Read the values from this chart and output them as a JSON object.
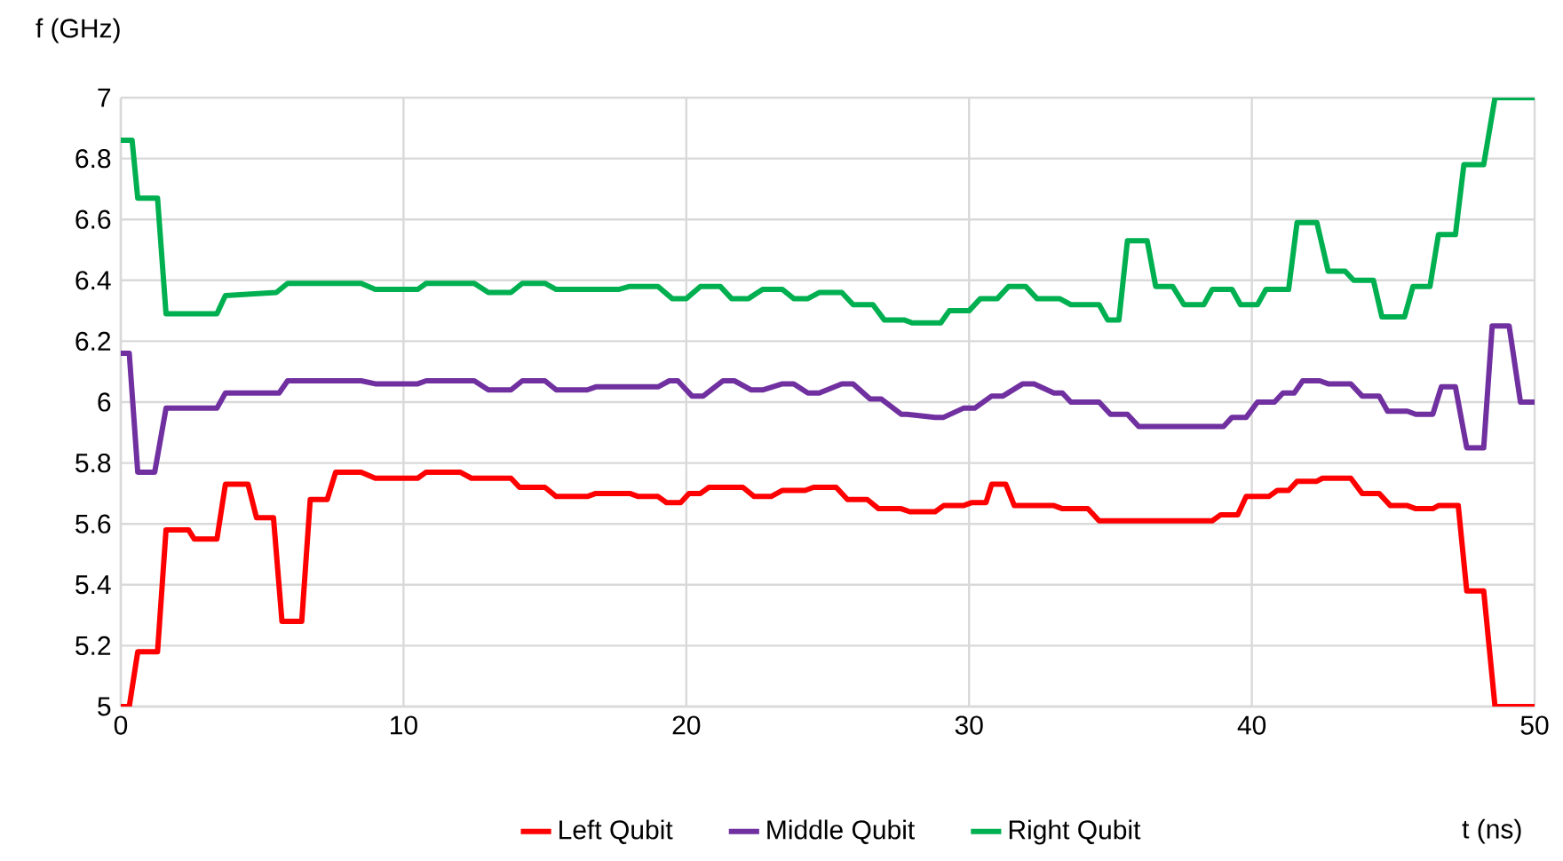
{
  "chart_data": {
    "type": "line",
    "xlabel": "t (ns)",
    "ylabel": "f (GHz)",
    "xlim": [
      0,
      50
    ],
    "xticks": [
      0,
      10,
      20,
      30,
      40,
      50
    ],
    "ylim": [
      5,
      7
    ],
    "yticks": [
      5,
      5.2,
      5.4,
      5.6,
      5.8,
      6,
      6.2,
      6.4,
      6.6,
      6.8,
      7
    ],
    "grid": true,
    "legend": "bottom",
    "series": [
      {
        "name": "Left Qubit",
        "color": "#ff0000",
        "x": [
          0,
          0.3,
          0.6,
          1.3,
          1.6,
          2.4,
          2.6,
          3.4,
          3.7,
          4.5,
          4.8,
          5.4,
          5.7,
          6.4,
          6.7,
          7.3,
          7.6,
          8.5,
          9,
          10.5,
          10.8,
          12,
          12.4,
          13.8,
          14.1,
          15,
          15.4,
          16.5,
          16.8,
          18,
          18.3,
          19,
          19.3,
          19.8,
          20.1,
          20.5,
          20.8,
          22,
          22.4,
          23,
          23.4,
          24.2,
          24.5,
          25.3,
          25.7,
          26.4,
          26.8,
          27.6,
          27.9,
          28.8,
          29.1,
          29.8,
          30.1,
          30.6,
          30.8,
          31.3,
          31.6,
          33,
          33.3,
          34.2,
          34.6,
          38.6,
          38.9,
          39.5,
          39.8,
          40.6,
          40.9,
          41.3,
          41.6,
          42.3,
          42.5,
          43.5,
          43.9,
          44.5,
          44.9,
          45.5,
          45.8,
          46.4,
          46.6,
          47.3,
          47.6,
          48.2,
          48.6,
          50
        ],
        "values": [
          5.0,
          5.0,
          5.18,
          5.18,
          5.58,
          5.58,
          5.55,
          5.55,
          5.73,
          5.73,
          5.62,
          5.62,
          5.28,
          5.28,
          5.68,
          5.68,
          5.77,
          5.77,
          5.75,
          5.75,
          5.77,
          5.77,
          5.75,
          5.75,
          5.72,
          5.72,
          5.69,
          5.69,
          5.7,
          5.7,
          5.69,
          5.69,
          5.67,
          5.67,
          5.7,
          5.7,
          5.72,
          5.72,
          5.69,
          5.69,
          5.71,
          5.71,
          5.72,
          5.72,
          5.68,
          5.68,
          5.65,
          5.65,
          5.64,
          5.64,
          5.66,
          5.66,
          5.67,
          5.67,
          5.73,
          5.73,
          5.66,
          5.66,
          5.65,
          5.65,
          5.61,
          5.61,
          5.63,
          5.63,
          5.69,
          5.69,
          5.71,
          5.71,
          5.74,
          5.74,
          5.75,
          5.75,
          5.7,
          5.7,
          5.66,
          5.66,
          5.65,
          5.65,
          5.66,
          5.66,
          5.38,
          5.38,
          5.0,
          5.0
        ]
      },
      {
        "name": "Middle Qubit",
        "color": "#7030a0",
        "x": [
          0,
          0.3,
          0.6,
          1.2,
          1.6,
          3.4,
          3.7,
          5.6,
          5.9,
          8.5,
          9,
          10.5,
          10.8,
          12.5,
          13,
          13.8,
          14.2,
          15,
          15.4,
          16.5,
          16.8,
          19,
          19.4,
          19.7,
          20.2,
          20.6,
          21.3,
          21.7,
          22.3,
          22.7,
          23.4,
          23.8,
          24.3,
          24.7,
          25.5,
          25.9,
          26.5,
          26.9,
          27.6,
          27.8,
          28.8,
          29.1,
          29.8,
          30.2,
          30.8,
          31.2,
          31.9,
          32.3,
          33,
          33.3,
          33.6,
          34.6,
          35,
          35.6,
          36,
          39,
          39.3,
          39.8,
          40.2,
          40.8,
          41.1,
          41.5,
          41.8,
          42.4,
          42.7,
          43.5,
          43.9,
          44.5,
          44.8,
          45.5,
          45.8,
          46.4,
          46.7,
          47.2,
          47.6,
          48.2,
          48.5,
          49.1,
          49.5,
          50
        ],
        "values": [
          6.16,
          6.16,
          5.77,
          5.77,
          5.98,
          5.98,
          6.03,
          6.03,
          6.07,
          6.07,
          6.06,
          6.06,
          6.07,
          6.07,
          6.04,
          6.04,
          6.07,
          6.07,
          6.04,
          6.04,
          6.05,
          6.05,
          6.07,
          6.07,
          6.02,
          6.02,
          6.07,
          6.07,
          6.04,
          6.04,
          6.06,
          6.06,
          6.03,
          6.03,
          6.06,
          6.06,
          6.01,
          6.01,
          5.96,
          5.96,
          5.95,
          5.95,
          5.98,
          5.98,
          6.02,
          6.02,
          6.06,
          6.06,
          6.03,
          6.03,
          6.0,
          6.0,
          5.96,
          5.96,
          5.92,
          5.92,
          5.95,
          5.95,
          6.0,
          6.0,
          6.03,
          6.03,
          6.07,
          6.07,
          6.06,
          6.06,
          6.02,
          6.02,
          5.97,
          5.97,
          5.96,
          5.96,
          6.05,
          6.05,
          5.85,
          5.85,
          6.25,
          6.25,
          6.0,
          6.0
        ]
      },
      {
        "name": "Right Qubit",
        "color": "#00b050",
        "x": [
          0,
          0.4,
          0.6,
          1.3,
          1.6,
          3.4,
          3.7,
          5.5,
          5.9,
          8.5,
          9,
          10.5,
          10.8,
          12.5,
          13,
          13.8,
          14.2,
          15,
          15.4,
          17.6,
          18,
          19,
          19.5,
          20,
          20.5,
          21.2,
          21.6,
          22.2,
          22.7,
          23.4,
          23.8,
          24.3,
          24.7,
          25.5,
          25.9,
          26.6,
          27,
          27.7,
          28,
          29,
          29.3,
          30,
          30.4,
          31,
          31.4,
          32,
          32.4,
          33.2,
          33.6,
          34.6,
          34.9,
          35.3,
          35.6,
          36.3,
          36.6,
          37.2,
          37.6,
          38.3,
          38.6,
          39.3,
          39.6,
          40.2,
          40.5,
          41.3,
          41.6,
          42.3,
          42.7,
          43.3,
          43.6,
          44.3,
          44.6,
          45.4,
          45.7,
          46.3,
          46.6,
          47.2,
          47.5,
          48.2,
          48.6,
          50
        ],
        "values": [
          6.86,
          6.86,
          6.67,
          6.67,
          6.29,
          6.29,
          6.35,
          6.36,
          6.39,
          6.39,
          6.37,
          6.37,
          6.39,
          6.39,
          6.36,
          6.36,
          6.39,
          6.39,
          6.37,
          6.37,
          6.38,
          6.38,
          6.34,
          6.34,
          6.38,
          6.38,
          6.34,
          6.34,
          6.37,
          6.37,
          6.34,
          6.34,
          6.36,
          6.36,
          6.32,
          6.32,
          6.27,
          6.27,
          6.26,
          6.26,
          6.3,
          6.3,
          6.34,
          6.34,
          6.38,
          6.38,
          6.34,
          6.34,
          6.32,
          6.32,
          6.27,
          6.27,
          6.53,
          6.53,
          6.38,
          6.38,
          6.32,
          6.32,
          6.37,
          6.37,
          6.32,
          6.32,
          6.37,
          6.37,
          6.59,
          6.59,
          6.43,
          6.43,
          6.4,
          6.4,
          6.28,
          6.28,
          6.38,
          6.38,
          6.55,
          6.55,
          6.78,
          6.78,
          7.0,
          7.0
        ]
      }
    ]
  }
}
